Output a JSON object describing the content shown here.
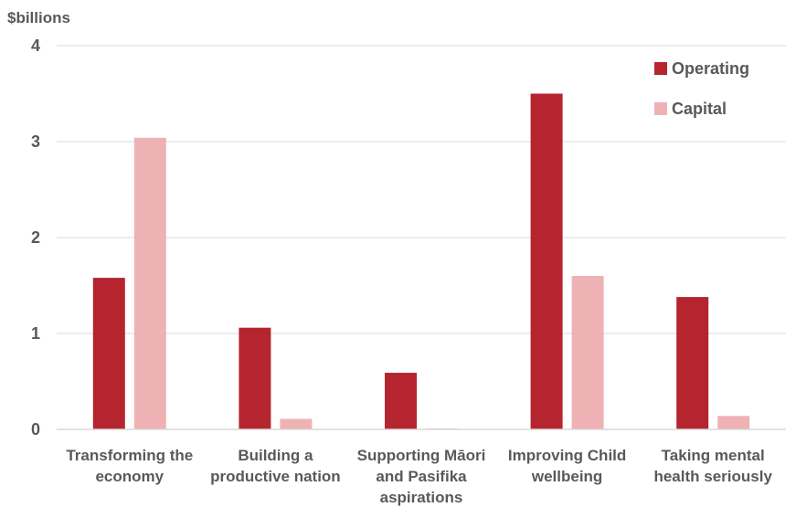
{
  "chart_data": {
    "type": "bar",
    "ylabel": "$billions",
    "ylim": [
      0,
      4
    ],
    "yticks": [
      0,
      1,
      2,
      3,
      4
    ],
    "grid": true,
    "legend_position": "top-right",
    "categories": [
      [
        "Transforming the",
        "economy"
      ],
      [
        "Building a",
        "productive nation"
      ],
      [
        "Supporting Māori",
        "and Pasifika",
        "aspirations"
      ],
      [
        "Improving Child",
        "wellbeing"
      ],
      [
        "Taking mental",
        "health seriously"
      ]
    ],
    "series": [
      {
        "name": "Operating",
        "color": "#b5252f",
        "values": [
          1.58,
          1.06,
          0.59,
          3.5,
          1.38
        ]
      },
      {
        "name": "Capital",
        "color": "#efb2b4",
        "values": [
          3.04,
          0.11,
          0.01,
          1.6,
          0.14
        ]
      }
    ]
  }
}
